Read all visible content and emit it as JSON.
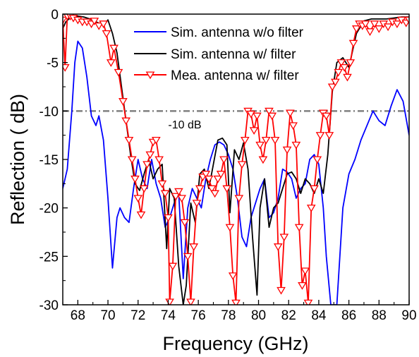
{
  "chart_data": {
    "type": "line",
    "xlabel": "Frequency (GHz)",
    "ylabel": "Reflection ( dB)",
    "xlim": [
      67,
      90
    ],
    "ylim": [
      -30,
      0
    ],
    "x_ticks": [
      68,
      70,
      72,
      74,
      76,
      78,
      80,
      82,
      84,
      86,
      88,
      90
    ],
    "y_ticks": [
      0,
      -5,
      -10,
      -15,
      -20,
      -25,
      -30
    ],
    "legend_position": "top-center",
    "annotation": {
      "text": "-10 dB",
      "x": 74.0,
      "y": -11.8
    },
    "reference_line": {
      "y": -10,
      "style": "dash-dot",
      "color": "#808080"
    },
    "series": [
      {
        "name": "Sim. antenna w/o filter",
        "color": "#0000ff",
        "marker": "none",
        "x": [
          67.0,
          67.3,
          67.6,
          67.8,
          68.0,
          68.3,
          68.6,
          68.9,
          69.2,
          69.4,
          69.7,
          70.0,
          70.3,
          70.6,
          70.8,
          71.1,
          71.4,
          71.7,
          72.0,
          72.3,
          72.6,
          72.9,
          73.2,
          73.5,
          73.8,
          74.1,
          74.4,
          74.7,
          75.0,
          75.3,
          75.6,
          75.9,
          76.2,
          76.5,
          76.8,
          77.1,
          77.4,
          77.7,
          78.0,
          78.3,
          78.6,
          78.9,
          79.2,
          79.5,
          79.8,
          80.1,
          80.4,
          80.7,
          81.0,
          81.3,
          81.6,
          81.9,
          82.2,
          82.5,
          82.8,
          83.1,
          83.4,
          83.7,
          84.0,
          84.3,
          84.5,
          84.8,
          85.2,
          85.6,
          86.0,
          86.4,
          86.8,
          87.2,
          87.6,
          88.0,
          88.4,
          88.8,
          89.2,
          89.6,
          90.0
        ],
        "y": [
          -18.0,
          -16.0,
          -10.0,
          -5.0,
          -2.8,
          -3.5,
          -6.5,
          -10.5,
          -11.5,
          -10.5,
          -13.0,
          -19.0,
          -26.2,
          -21.0,
          -20.0,
          -21.0,
          -21.5,
          -18.0,
          -15.0,
          -17.0,
          -18.0,
          -15.0,
          -17.5,
          -19.0,
          -22.0,
          -21.0,
          -19.5,
          -18.5,
          -27.3,
          -20.0,
          -18.0,
          -19.0,
          -20.0,
          -17.0,
          -15.0,
          -13.5,
          -13.2,
          -13.5,
          -14.5,
          -16.0,
          -19.0,
          -23.0,
          -24.0,
          -21.0,
          -19.5,
          -18.0,
          -17.0,
          -21.0,
          -20.5,
          -19.0,
          -16.0,
          -16.3,
          -17.0,
          -19.0,
          -18.0,
          -17.5,
          -15.0,
          -14.5,
          -15.5,
          -20.0,
          -25.0,
          -30.0,
          -30.0,
          -20.0,
          -16.5,
          -15.0,
          -13.0,
          -11.5,
          -10.0,
          -11.0,
          -11.5,
          -9.5,
          -7.8,
          -9.0,
          -12.5
        ]
      },
      {
        "name": "Sim. antenna w/ filter",
        "color": "#000000",
        "marker": "none",
        "x": [
          67.0,
          67.2,
          67.4,
          67.7,
          68.0,
          68.4,
          68.8,
          69.2,
          69.5,
          69.8,
          70.0,
          70.3,
          70.6,
          70.9,
          71.2,
          71.5,
          71.8,
          72.1,
          72.4,
          72.7,
          73.0,
          73.3,
          73.6,
          73.9,
          74.1,
          74.4,
          74.7,
          75.0,
          75.2,
          75.5,
          75.8,
          76.1,
          76.4,
          76.7,
          77.0,
          77.3,
          77.6,
          77.9,
          78.1,
          78.4,
          78.7,
          79.0,
          79.3,
          79.6,
          79.9,
          80.1,
          80.4,
          80.7,
          81.0,
          81.3,
          81.6,
          81.9,
          82.2,
          82.5,
          82.8,
          83.1,
          83.4,
          83.7,
          84.0,
          84.3,
          84.6,
          84.9,
          85.2,
          85.6,
          86.0,
          86.5,
          87.0,
          87.5,
          88.0,
          88.5,
          89.0,
          89.5,
          90.0
        ],
        "y": [
          -1.5,
          -0.8,
          -0.5,
          -0.3,
          -0.2,
          -0.3,
          -0.5,
          -0.8,
          -1.0,
          -1.0,
          -0.6,
          -2.0,
          -4.0,
          -7.5,
          -11.0,
          -14.5,
          -17.5,
          -18.2,
          -16.5,
          -15.0,
          -17.0,
          -16.0,
          -15.5,
          -24.2,
          -18.0,
          -19.0,
          -26.0,
          -30.0,
          -28.0,
          -19.5,
          -21.5,
          -16.5,
          -16.0,
          -18.0,
          -15.5,
          -13.0,
          -12.8,
          -13.5,
          -20.5,
          -14.0,
          -15.0,
          -13.3,
          -16.0,
          -23.0,
          -29.0,
          -20.0,
          -17.0,
          -22.0,
          -20.0,
          -19.5,
          -18.0,
          -16.5,
          -16.3,
          -17.0,
          -18.5,
          -17.0,
          -17.5,
          -18.5,
          -17.0,
          -18.5,
          -14.5,
          -8.0,
          -5.0,
          -4.5,
          -5.5,
          -2.0,
          -0.7,
          -0.5,
          -0.5,
          -0.5,
          -0.4,
          -0.3,
          -0.3
        ]
      },
      {
        "name": "Mea. antenna w/ filter",
        "color": "#ff0000",
        "marker": "triangle-down",
        "x": [
          67.0,
          67.15,
          67.3,
          67.5,
          67.7,
          68.0,
          68.3,
          68.6,
          68.9,
          69.1,
          69.4,
          69.7,
          69.9,
          70.2,
          70.4,
          70.7,
          71.0,
          71.2,
          71.4,
          71.6,
          71.8,
          72.0,
          72.2,
          72.4,
          72.6,
          72.8,
          73.0,
          73.2,
          73.4,
          73.6,
          73.8,
          74.0,
          74.1,
          74.3,
          74.5,
          74.7,
          74.9,
          75.1,
          75.3,
          75.5,
          75.7,
          75.9,
          76.1,
          76.3,
          76.5,
          76.7,
          76.9,
          77.1,
          77.3,
          77.5,
          77.7,
          77.9,
          78.1,
          78.3,
          78.5,
          78.7,
          78.9,
          79.1,
          79.3,
          79.5,
          79.7,
          79.9,
          80.1,
          80.3,
          80.5,
          80.7,
          80.9,
          81.1,
          81.3,
          81.5,
          81.7,
          81.9,
          82.1,
          82.3,
          82.5,
          82.7,
          82.9,
          83.1,
          83.3,
          83.5,
          83.7,
          83.9,
          84.1,
          84.3,
          84.5,
          84.7,
          84.9,
          85.1,
          85.3,
          85.5,
          85.7,
          85.9,
          86.1,
          86.3,
          86.5,
          86.7,
          86.9,
          87.1,
          87.4,
          87.7,
          88.0,
          88.3,
          88.6,
          88.9,
          89.2,
          89.5,
          89.8,
          90.0
        ],
        "y": [
          -0.6,
          -5.5,
          -0.2,
          -0.2,
          -0.4,
          -0.6,
          -0.8,
          -0.8,
          -1.0,
          -0.7,
          -1.2,
          -1.0,
          -2.0,
          -5.0,
          -3.5,
          -6.0,
          -9.0,
          -11.0,
          -13.0,
          -15.0,
          -17.0,
          -19.0,
          -20.7,
          -18.0,
          -15.5,
          -14.5,
          -13.2,
          -13.0,
          -15.0,
          -17.5,
          -18.5,
          -21.0,
          -29.7,
          -26.0,
          -18.8,
          -18.3,
          -19.0,
          -21.5,
          -25.0,
          -29.7,
          -24.0,
          -19.5,
          -18.0,
          -16.8,
          -16.5,
          -17.0,
          -18.0,
          -18.5,
          -17.0,
          -16.5,
          -15.0,
          -18.0,
          -22.0,
          -27.0,
          -29.8,
          -19.0,
          -15.5,
          -13.0,
          -10.0,
          -10.3,
          -12.0,
          -10.5,
          -13.5,
          -15.0,
          -13.0,
          -10.0,
          -10.5,
          -13.0,
          -24.0,
          -28.5,
          -23.0,
          -14.0,
          -10.2,
          -11.5,
          -13.5,
          -22.0,
          -28.0,
          -26.5,
          -29.8,
          -20.0,
          -18.0,
          -15.0,
          -12.5,
          -10.2,
          -10.5,
          -12.5,
          -7.5,
          -7.0,
          -6.0,
          -5.0,
          -5.5,
          -6.5,
          -5.0,
          -3.0,
          -1.5,
          -1.0,
          -1.2,
          -1.0,
          -1.8,
          -1.0,
          -1.5,
          -1.0,
          -1.3,
          -0.8,
          -1.0,
          -0.6,
          -0.9,
          -0.6
        ]
      }
    ]
  }
}
